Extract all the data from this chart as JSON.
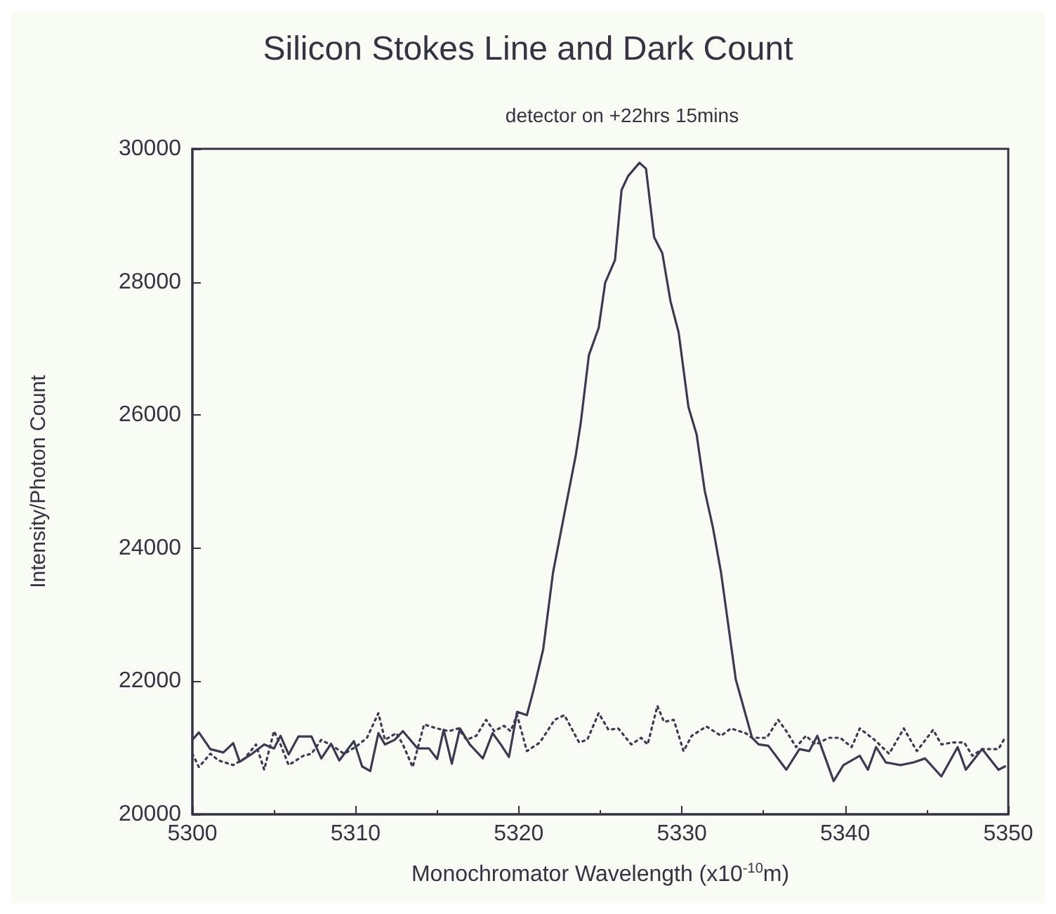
{
  "chart_data": {
    "type": "line",
    "title": "Silicon Stokes Line and Dark Count",
    "subtitle": "detector on +22hrs 15mins",
    "xlabel": "Monochromator Wavelength (x10$^{-10}$m)",
    "ylabel": "Intensity/Photon Count",
    "xlim": [
      5300,
      5350
    ],
    "xticks": [
      5300,
      5310,
      5320,
      5330,
      5340,
      5350
    ],
    "ylim": [
      20000,
      30000
    ],
    "yticks": [
      20000,
      22000,
      24000,
      26000,
      28000,
      30000
    ],
    "grid": false,
    "marker": "none",
    "series": [
      {
        "color": "#3a3a55",
        "line_style": "solid",
        "x": [
          5300,
          5300.4,
          5301.1,
          5301.9,
          5302.5,
          5302.9,
          5303.6,
          5304.4,
          5305.0,
          5305.4,
          5305.9,
          5306.5,
          5307.3,
          5307.9,
          5308.5,
          5309.0,
          5309.9,
          5310.4,
          5310.9,
          5311.4,
          5311.8,
          5312.4,
          5312.9,
          5313.8,
          5314.5,
          5315.0,
          5315.4,
          5315.9,
          5316.4,
          5317.0,
          5317.8,
          5318.4,
          5318.9,
          5319.4,
          5319.9,
          5320.5,
          5320.9,
          5321.5,
          5322.1,
          5322.8,
          5323.5,
          5323.8,
          5324.3,
          5324.9,
          5325.3,
          5325.9,
          5326.3,
          5326.7,
          5327.4,
          5327.8,
          5328.3,
          5328.8,
          5329.3,
          5329.8,
          5330.4,
          5330.9,
          5331.4,
          5331.9,
          5332.4,
          5333.3,
          5334.3,
          5334.7,
          5335.3,
          5336.4,
          5337.2,
          5337.8,
          5338.3,
          5339.3,
          5339.9,
          5340.9,
          5341.4,
          5341.9,
          5342.5,
          5343.4,
          5344.2,
          5344.9,
          5345.9,
          5346.9,
          5347.4,
          5348.4,
          5349.4,
          5349.8
        ],
        "values": [
          21120,
          21230,
          20980,
          20930,
          21070,
          20790,
          20900,
          21050,
          20990,
          21180,
          20900,
          21170,
          21170,
          20840,
          21060,
          20810,
          21100,
          20720,
          20650,
          21220,
          21050,
          21120,
          21250,
          20990,
          20990,
          20830,
          21270,
          20760,
          21290,
          21050,
          20840,
          21220,
          21050,
          20860,
          21540,
          21490,
          21860,
          22480,
          23630,
          24520,
          25400,
          25880,
          26900,
          27310,
          27990,
          28330,
          29380,
          29590,
          29790,
          29700,
          28670,
          28430,
          27710,
          27240,
          26120,
          25710,
          24860,
          24310,
          23630,
          22030,
          21150,
          21050,
          21030,
          20670,
          20980,
          20950,
          21180,
          20500,
          20740,
          20880,
          20670,
          21010,
          20780,
          20740,
          20780,
          20840,
          20570,
          21010,
          20670,
          20980,
          20670,
          20720
        ]
      },
      {
        "color": "#3a3a55",
        "line_style": "dotted",
        "x": [
          5300,
          5300.4,
          5301.1,
          5301.6,
          5302.5,
          5303.2,
          5303.9,
          5304.4,
          5305.0,
          5305.4,
          5305.9,
          5306.8,
          5307.3,
          5307.9,
          5308.7,
          5309.3,
          5310.0,
          5310.7,
          5311.4,
          5311.8,
          5312.5,
          5312.9,
          5313.5,
          5314.2,
          5315.0,
          5315.7,
          5316.3,
          5316.8,
          5317.4,
          5318.0,
          5318.5,
          5319.1,
          5319.5,
          5319.9,
          5320.5,
          5321.3,
          5322.2,
          5322.8,
          5323.7,
          5324.2,
          5324.9,
          5325.5,
          5326.1,
          5326.9,
          5327.5,
          5327.9,
          5328.5,
          5328.9,
          5329.5,
          5330.1,
          5330.6,
          5331.5,
          5332.4,
          5333.0,
          5333.9,
          5334.3,
          5335.2,
          5335.9,
          5336.4,
          5337.0,
          5337.6,
          5338.2,
          5339.0,
          5339.7,
          5340.4,
          5340.9,
          5341.8,
          5342.7,
          5343.6,
          5344.4,
          5345.4,
          5345.9,
          5346.6,
          5347.3,
          5347.8,
          5348.4,
          5349.4,
          5349.8
        ],
        "values": [
          20910,
          20710,
          20910,
          20810,
          20740,
          20840,
          21050,
          20670,
          21250,
          21050,
          20740,
          20880,
          20910,
          21120,
          21010,
          20910,
          21010,
          21150,
          21520,
          21120,
          21220,
          21050,
          20710,
          21350,
          21290,
          21250,
          21290,
          21120,
          21180,
          21420,
          21250,
          21330,
          21250,
          21490,
          20950,
          21080,
          21420,
          21490,
          21080,
          21120,
          21520,
          21270,
          21290,
          21050,
          21150,
          21050,
          21630,
          21390,
          21420,
          20950,
          21180,
          21320,
          21180,
          21290,
          21220,
          21150,
          21150,
          21420,
          21250,
          21010,
          21180,
          21050,
          21150,
          21150,
          21010,
          21290,
          21120,
          20910,
          21290,
          20950,
          21270,
          21050,
          21080,
          21080,
          20880,
          20980,
          20980,
          21150
        ]
      }
    ]
  }
}
